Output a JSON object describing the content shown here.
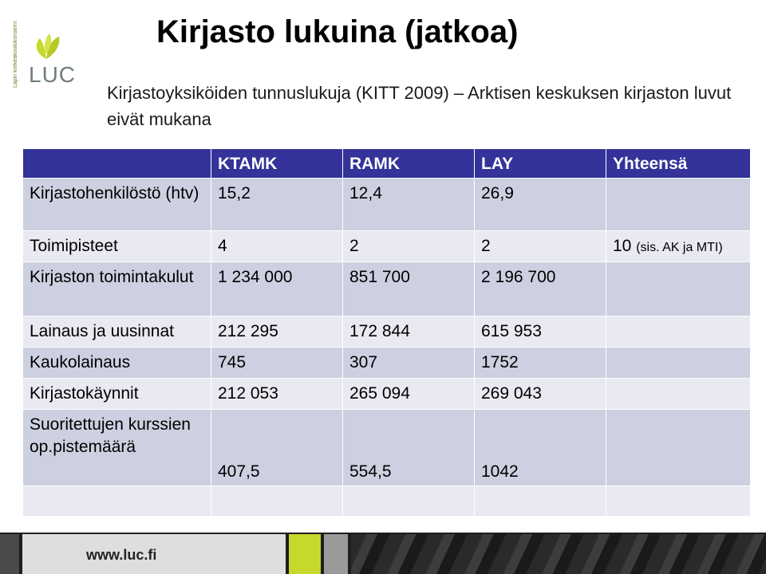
{
  "logo": {
    "name": "LUC",
    "vertical_text": "Lapin korkeakoulukonserni",
    "color": "#c5d82b"
  },
  "title": "Kirjasto lukuina (jatkoa)",
  "subtitle": "Kirjastoyksiköiden tunnuslukuja (KITT 2009) – Arktisen keskuksen kirjaston luvut eivät mukana",
  "table": {
    "headers": [
      "",
      "KTAMK",
      "RAMK",
      "LAY",
      "Yhteensä"
    ],
    "rows": [
      {
        "label": "Kirjastohenkilöstö (htv)",
        "values": [
          "15,2",
          "12,4",
          "26,9",
          ""
        ]
      },
      {
        "label": "Toimipisteet",
        "values": [
          "4",
          "2",
          "2",
          "10"
        ],
        "note": "(sis. AK ja MTI)"
      },
      {
        "label": "Kirjaston toimintakulut",
        "values": [
          "1 234 000",
          "851 700",
          "2 196 700",
          ""
        ]
      },
      {
        "label": "Lainaus ja uusinnat",
        "values": [
          "212 295",
          "172 844",
          "615 953",
          ""
        ]
      },
      {
        "label": "Kaukolainaus",
        "values": [
          "745",
          "307",
          "1752",
          ""
        ]
      },
      {
        "label": "Kirjastokäynnit",
        "values": [
          "212 053",
          "265 094",
          "269 043",
          ""
        ]
      },
      {
        "label": "Suoritettujen kurssien op.pistemäärä",
        "values": [
          "407,5",
          "554,5",
          "1042",
          ""
        ]
      },
      {
        "label": "",
        "values": [
          "",
          "",
          "",
          ""
        ]
      }
    ],
    "colors": {
      "header": "#333399",
      "row_dark": "#cdd0e0",
      "row_light": "#e8e9f1"
    }
  },
  "footer": {
    "url": "www.luc.fi"
  }
}
